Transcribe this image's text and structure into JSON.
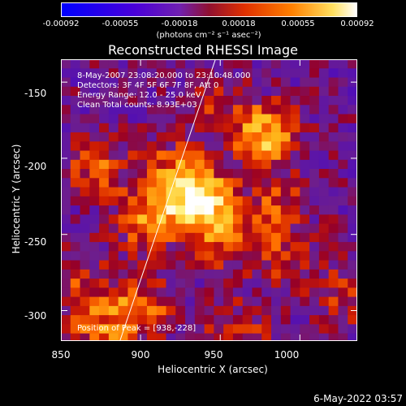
{
  "chart_data": {
    "type": "heatmap",
    "title": "Reconstructed RHESSI Image",
    "xlabel": "Heliocentric X (arcsec)",
    "ylabel": "Heliocentric Y (arcsec)",
    "xlim": [
      850,
      1036
    ],
    "ylim": [
      -320,
      -135
    ],
    "x_ticks": [
      "850",
      "900",
      "950",
      "1000"
    ],
    "x_tick_values": [
      850,
      900,
      950,
      1000
    ],
    "y_ticks": [
      "-150",
      "-200",
      "-250",
      "-300"
    ],
    "y_tick_values": [
      -150,
      -200,
      -250,
      -300
    ],
    "colorbar": {
      "ticks": [
        "-0.00092",
        "-0.00055",
        "-0.00018",
        "0.00018",
        "0.00055",
        "0.00092"
      ],
      "units": "(photons cm⁻² s⁻¹ asec⁻²)",
      "range": [
        -0.00092,
        0.00092
      ]
    },
    "info": {
      "time_range": "8-May-2007 23:08:20.000 to 23:10:48.000",
      "detectors": "Detectors: 3F 4F 5F 6F 7F 8F, Att 0",
      "energy_range": "Energy Range: 12.0 - 25.0 keV",
      "algorithm": "Clean     Total counts: 8.93E+03"
    },
    "peak_label": "Position of Peak = [938,-228]",
    "peak_position": [
      938,
      -228
    ],
    "limb_line": {
      "x": [
        887,
        947
      ],
      "y": [
        -320,
        -135
      ]
    },
    "sources": [
      {
        "x": 938,
        "y": -228,
        "intensity": 0.00092
      },
      {
        "x": 978,
        "y": -185,
        "intensity": 0.0007
      },
      {
        "x": 905,
        "y": -240,
        "intensity": 0.00055
      },
      {
        "x": 920,
        "y": -210,
        "intensity": 0.00045
      },
      {
        "x": 872,
        "y": -205,
        "intensity": 0.0004
      },
      {
        "x": 900,
        "y": -298,
        "intensity": 0.0005
      },
      {
        "x": 875,
        "y": -315,
        "intensity": 0.0004
      },
      {
        "x": 960,
        "y": -315,
        "intensity": 0.00035
      },
      {
        "x": 955,
        "y": -255,
        "intensity": 0.0004
      },
      {
        "x": 990,
        "y": -265,
        "intensity": 0.0003
      },
      {
        "x": 985,
        "y": -230,
        "intensity": 0.00035
      },
      {
        "x": 1025,
        "y": -290,
        "intensity": 0.0003
      },
      {
        "x": 945,
        "y": -165,
        "intensity": 0.00025
      },
      {
        "x": 862,
        "y": -285,
        "intensity": 0.00035
      }
    ]
  },
  "timestamp": "6-May-2022 03:57"
}
